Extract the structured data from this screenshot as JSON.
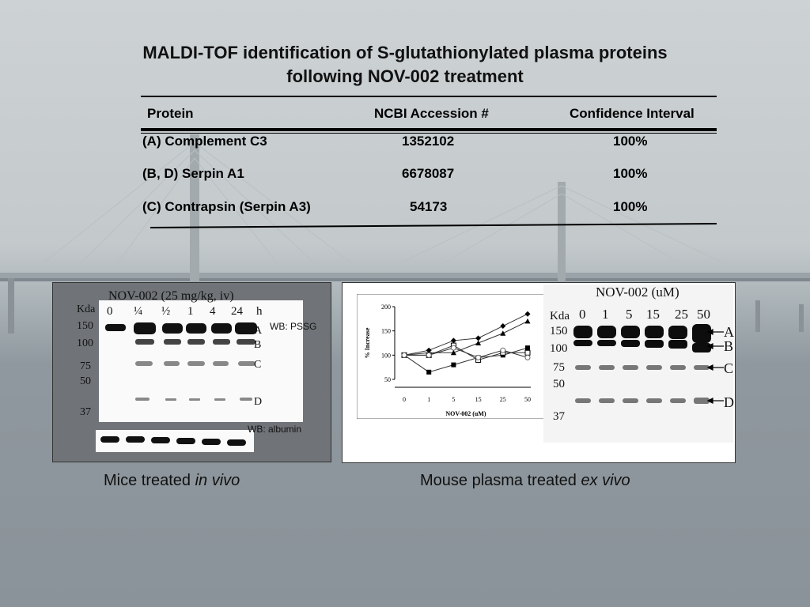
{
  "slide": {
    "title_line1": "MALDI-TOF identification of S-glutathionylated plasma  proteins",
    "title_line2": "following NOV-002 treatment"
  },
  "table": {
    "headers": [
      "Protein",
      "NCBI Accession #",
      "Confidence Interval"
    ],
    "rows": [
      [
        "(A) Complement C3",
        "1352102",
        "100%"
      ],
      [
        "(B, D) Serpin A1",
        "6678087",
        "100%"
      ],
      [
        "(C) Contrapsin (Serpin A3)",
        "54173",
        "100%"
      ]
    ]
  },
  "left_figure": {
    "title": "NOV-002 (25 mg/kg, iv)",
    "kda_label": "Kda",
    "markers": [
      "150",
      "100",
      "75",
      "50",
      "37"
    ],
    "lanes": [
      "0",
      "¼",
      "½",
      "1",
      "4",
      "24"
    ],
    "time_unit": "h",
    "band_labels": [
      "A",
      "B",
      "C",
      "D"
    ],
    "wb_pssg": "WB: PSSG",
    "wb_albumin": "WB: albumin"
  },
  "right_figure": {
    "title": "NOV-002 (uM)",
    "kda_label": "Kda",
    "markers": [
      "150",
      "100",
      "75",
      "50",
      "37"
    ],
    "lanes": [
      "0",
      "1",
      "5",
      "15",
      "25",
      "50"
    ],
    "band_labels": [
      "A",
      "B",
      "C",
      "D"
    ]
  },
  "chart_data": {
    "type": "line",
    "xlabel": "NOV-002 (uM)",
    "ylabel": "% Increase",
    "categories": [
      "0",
      "1",
      "5",
      "15",
      "25",
      "50"
    ],
    "y_ticks": [
      "200",
      "150",
      "100",
      "50"
    ],
    "ylim": [
      50,
      200
    ],
    "grid": false,
    "series": [
      {
        "marker": "diamond",
        "values": [
          100,
          110,
          130,
          135,
          160,
          185
        ]
      },
      {
        "marker": "triangle",
        "values": [
          100,
          105,
          105,
          125,
          145,
          170
        ]
      },
      {
        "marker": "square-filled",
        "values": [
          100,
          65,
          80,
          95,
          100,
          115
        ]
      },
      {
        "marker": "square-open",
        "values": [
          100,
          100,
          120,
          90,
          105,
          105
        ]
      },
      {
        "marker": "circle-open",
        "values": [
          100,
          100,
          115,
          95,
          110,
          95
        ]
      }
    ]
  },
  "captions": {
    "left_prefix": "Mice treated ",
    "left_italic": "in vivo",
    "right_prefix": "Mouse plasma treated ",
    "right_italic": "ex vivo"
  }
}
